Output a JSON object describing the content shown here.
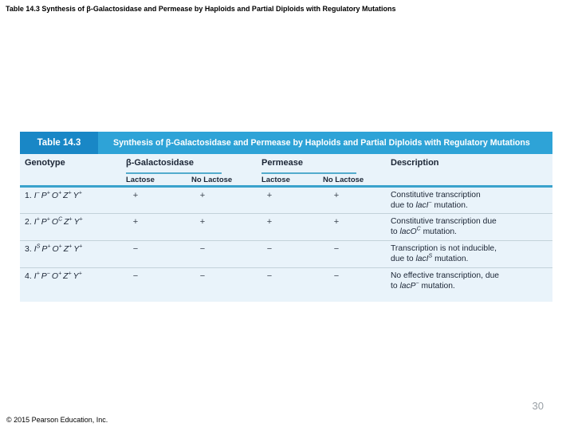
{
  "slide": {
    "title": "Table 14.3 Synthesis of β-Galactosidase and Permease by Haploids and Partial Diploids with Regulatory Mutations",
    "copyright": "© 2015 Pearson Education, Inc.",
    "page_number": "30"
  },
  "table": {
    "label": "Table 14.3",
    "caption": "Synthesis of β-Galactosidase and Permease by Haploids and Partial Diploids with Regulatory Mutations",
    "columns": {
      "genotype": "Genotype",
      "beta_gal": "β-Galactosidase",
      "permease": "Permease",
      "description": "Description",
      "sub_lactose": "Lactose",
      "sub_no_lactose": "No Lactose"
    },
    "rows": [
      {
        "num": "1.",
        "genotype": [
          [
            "I",
            "−"
          ],
          [
            "P",
            "+"
          ],
          [
            "O",
            "+"
          ],
          [
            "Z",
            "+"
          ],
          [
            "Y",
            "+"
          ]
        ],
        "values": [
          "+",
          "+",
          "+",
          "+"
        ],
        "description_lines": [
          [
            [
              "Constitutive transcription",
              ""
            ]
          ],
          [
            [
              "due to ",
              ""
            ],
            [
              "lacI",
              "i"
            ],
            [
              "−",
              "sup"
            ],
            [
              " mutation.",
              ""
            ]
          ]
        ]
      },
      {
        "num": "2.",
        "genotype": [
          [
            "I",
            "+"
          ],
          [
            "P",
            "+"
          ],
          [
            "O",
            "C"
          ],
          [
            "Z",
            "+"
          ],
          [
            "Y",
            "+"
          ]
        ],
        "values": [
          "+",
          "+",
          "+",
          "+"
        ],
        "description_lines": [
          [
            [
              "Constitutive transcription due",
              ""
            ]
          ],
          [
            [
              "to ",
              ""
            ],
            [
              "lacO",
              "i"
            ],
            [
              "C",
              "sup"
            ],
            [
              " mutation.",
              ""
            ]
          ]
        ]
      },
      {
        "num": "3.",
        "genotype": [
          [
            "I",
            "S"
          ],
          [
            "P",
            "+"
          ],
          [
            "O",
            "+"
          ],
          [
            "Z",
            "+"
          ],
          [
            "Y",
            "+"
          ]
        ],
        "values": [
          "−",
          "−",
          "−",
          "−"
        ],
        "description_lines": [
          [
            [
              "Transcription is not inducible,",
              ""
            ]
          ],
          [
            [
              "due to ",
              ""
            ],
            [
              "lacI",
              "i"
            ],
            [
              "S",
              "sup"
            ],
            [
              " mutation.",
              ""
            ]
          ]
        ]
      },
      {
        "num": "4.",
        "genotype": [
          [
            "I",
            "+"
          ],
          [
            "P",
            "−"
          ],
          [
            "O",
            "+"
          ],
          [
            "Z",
            "+"
          ],
          [
            "Y",
            "+"
          ]
        ],
        "values": [
          "−",
          "−",
          "−",
          "−"
        ],
        "description_lines": [
          [
            [
              "No effective transcription, due",
              ""
            ]
          ],
          [
            [
              "to ",
              ""
            ],
            [
              "lacP",
              "i"
            ],
            [
              "−",
              "sup"
            ],
            [
              " mutation.",
              ""
            ]
          ]
        ]
      }
    ],
    "colors": {
      "label_box_blue": "#1987c6",
      "caption_band_blue": "#2ea3d7",
      "figure_background": "#e9f3fa",
      "header_rule_teal": "#3aa2cc",
      "text_dark": "#1b2535"
    }
  }
}
